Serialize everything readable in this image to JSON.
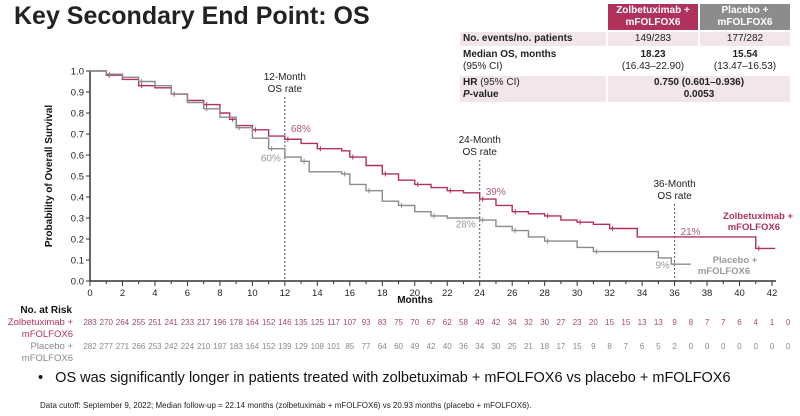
{
  "title": "Key Secondary End Point: OS",
  "colors": {
    "zolbe": "#b0325a",
    "placebo": "#8a8a8a",
    "zolbe_header": "#b0325a",
    "placebo_header": "#8c8c8c"
  },
  "table": {
    "headers": [
      "Zolbetuximab + mFOLFOX6",
      "Placebo + mFOLFOX6"
    ],
    "events_label": "No. events/no. patients",
    "events": [
      "149/283",
      "177/282"
    ],
    "median_label": "Median OS, months",
    "ci_label": "(95% CI)",
    "median": [
      "18.23",
      "15.54"
    ],
    "median_ci": [
      "(16.43–22.90)",
      "(13.47–16.53)"
    ],
    "hr_label": "HR",
    "hr_ci_label": " (95% CI)",
    "hr_value": "0.750 (0.601–0.936)",
    "p_label_italic": "P",
    "p_label_rest": "-value",
    "p_value": "0.0053"
  },
  "chart_data": {
    "type": "line",
    "title": "",
    "xlabel": "Months",
    "ylabel": "Probability of Overall Survival",
    "xlim": [
      0,
      42
    ],
    "ylim": [
      0,
      1
    ],
    "xticks": [
      0,
      2,
      4,
      6,
      8,
      10,
      12,
      14,
      16,
      18,
      20,
      22,
      24,
      26,
      28,
      30,
      32,
      34,
      36,
      38,
      40,
      42
    ],
    "yticks": [
      "0.0",
      "0.1",
      "0.2",
      "0.3",
      "0.4",
      "0.5",
      "0.6",
      "0.7",
      "0.8",
      "0.9",
      "1.0"
    ],
    "step": true,
    "series": [
      {
        "name": "Zolbetuximab + mFOLFOX6",
        "x": [
          0,
          1,
          2,
          3,
          4,
          5,
          6,
          7,
          8,
          8.6,
          9,
          10,
          11,
          12,
          13,
          14,
          15.5,
          16,
          17,
          18,
          19,
          20,
          21,
          22,
          23,
          24,
          25,
          26,
          27,
          28,
          29,
          30,
          31,
          32,
          33.7,
          41,
          42.2
        ],
        "y": [
          1,
          0.98,
          0.96,
          0.93,
          0.92,
          0.89,
          0.86,
          0.84,
          0.8,
          0.77,
          0.74,
          0.72,
          0.69,
          0.675,
          0.655,
          0.63,
          0.62,
          0.59,
          0.55,
          0.51,
          0.48,
          0.46,
          0.445,
          0.43,
          0.42,
          0.39,
          0.36,
          0.33,
          0.32,
          0.31,
          0.29,
          0.28,
          0.27,
          0.25,
          0.21,
          0.155,
          0.155
        ]
      },
      {
        "name": "Placebo + mFOLFOX6",
        "x": [
          0,
          1,
          2,
          3,
          4,
          5,
          6,
          7,
          8,
          9,
          10,
          11,
          12,
          13,
          13.5,
          15.5,
          16,
          17,
          18,
          19,
          20,
          21,
          22,
          24,
          25,
          26,
          27,
          28,
          30,
          31,
          35,
          35.8,
          37
        ],
        "y": [
          1,
          0.985,
          0.97,
          0.95,
          0.93,
          0.89,
          0.85,
          0.82,
          0.78,
          0.73,
          0.68,
          0.63,
          0.59,
          0.57,
          0.52,
          0.51,
          0.46,
          0.43,
          0.38,
          0.36,
          0.33,
          0.31,
          0.3,
          0.29,
          0.26,
          0.24,
          0.21,
          0.19,
          0.16,
          0.14,
          0.11,
          0.08,
          0.08
        ]
      }
    ],
    "annotations": [
      {
        "label": "12-Month",
        "label2": "OS rate",
        "month": 12,
        "zolbe": "68%",
        "placebo": "60%"
      },
      {
        "label": "24-Month",
        "label2": "OS rate",
        "month": 24,
        "zolbe": "39%",
        "placebo": "28%"
      },
      {
        "label": "36-Month",
        "label2": "OS rate",
        "month": 36,
        "zolbe": "21%",
        "placebo": "9%"
      }
    ],
    "curve_labels": {
      "zolbe": [
        "Zolbetuximab +",
        "mFOLFOX6"
      ],
      "placebo": [
        "Placebo +",
        "mFOLFOX6"
      ]
    },
    "at_risk": {
      "title": "No. at Risk",
      "zolbe_label": [
        "Zolbetuximab +",
        "mFOLFOX6"
      ],
      "placebo_label": [
        "Placebo +",
        "mFOLFOX6"
      ],
      "zolbe": [
        283,
        270,
        264,
        255,
        251,
        241,
        233,
        217,
        196,
        178,
        164,
        152,
        146,
        135,
        125,
        117,
        107,
        93,
        83,
        75,
        70,
        67,
        62,
        58,
        49,
        42,
        34,
        32,
        30,
        27,
        23,
        20,
        15,
        15,
        13,
        13,
        9,
        8,
        7,
        7,
        6,
        4,
        1,
        0
      ],
      "placebo": [
        282,
        277,
        271,
        266,
        253,
        242,
        224,
        210,
        197,
        183,
        164,
        152,
        139,
        129,
        108,
        101,
        85,
        77,
        64,
        60,
        49,
        42,
        40,
        36,
        34,
        30,
        25,
        21,
        18,
        17,
        15,
        9,
        8,
        7,
        6,
        5,
        2,
        0,
        0,
        0,
        0,
        0,
        0,
        0
      ]
    }
  },
  "bullet": "OS was significantly longer in patients treated with zolbetuximab + mFOLFOX6 vs placebo + mFOLFOX6",
  "footnote": "Data cutoff: September 9, 2022; Median follow-up = 22.14 months (zolbetuximab + mFOLFOX6) vs 20.93 months (placebo + mFOLFOX6)."
}
